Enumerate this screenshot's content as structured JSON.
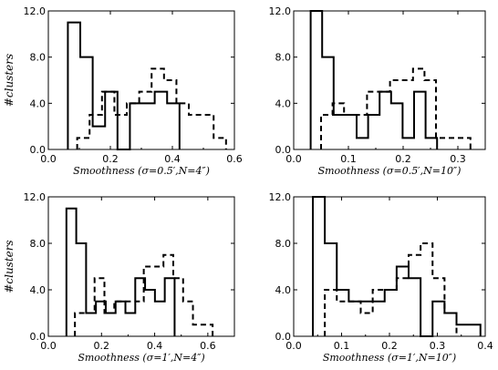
{
  "chart_data": [
    {
      "type": "histogram",
      "xlabel": "Smoothness (σ=0.5′,N=4″)",
      "ylabel": "#clusters",
      "xlim": [
        0,
        0.6
      ],
      "ylim": [
        0,
        12
      ],
      "xticks": [
        "0.0",
        "0.2",
        "0.4",
        "0.6"
      ],
      "yticks": [
        "0.0",
        "4.0",
        "8.0",
        "12.0"
      ],
      "series": [
        {
          "style": "solid",
          "edges": [
            0.063,
            0.103,
            0.143,
            0.183,
            0.223,
            0.263,
            0.303,
            0.343,
            0.383,
            0.423
          ],
          "counts": [
            11,
            8,
            2,
            5,
            0,
            4,
            4,
            5,
            4
          ]
        },
        {
          "style": "dashed",
          "edges": [
            0.093,
            0.133,
            0.173,
            0.213,
            0.253,
            0.293,
            0.333,
            0.373,
            0.413,
            0.453,
            0.493,
            0.533,
            0.573
          ],
          "counts": [
            1,
            3,
            5,
            3,
            4,
            5,
            7,
            6,
            4,
            3,
            3,
            1
          ]
        }
      ]
    },
    {
      "type": "histogram",
      "xlabel": "Smoothness (σ=0.5′,N=10″)",
      "ylabel": "",
      "xlim": [
        0,
        0.35
      ],
      "ylim": [
        0,
        12
      ],
      "xticks": [
        "0.0",
        "0.1",
        "0.2",
        "0.3"
      ],
      "yticks": [
        "0.0",
        "4.0",
        "8.0",
        "12.0"
      ],
      "series": [
        {
          "style": "solid",
          "edges": [
            0.031,
            0.052,
            0.073,
            0.094,
            0.115,
            0.136,
            0.157,
            0.178,
            0.199,
            0.22,
            0.241,
            0.262
          ],
          "counts": [
            12,
            8,
            3,
            3,
            1,
            3,
            5,
            4,
            1,
            5,
            1
          ]
        },
        {
          "style": "dashed",
          "edges": [
            0.05,
            0.071,
            0.092,
            0.113,
            0.134,
            0.155,
            0.176,
            0.197,
            0.218,
            0.239,
            0.26,
            0.281,
            0.302,
            0.323
          ],
          "counts": [
            3,
            4,
            3,
            3,
            5,
            5,
            6,
            6,
            7,
            6,
            1,
            1,
            1
          ]
        }
      ]
    },
    {
      "type": "histogram",
      "xlabel": "Smoothness (σ=1′,N=4″)",
      "ylabel": "#clusters",
      "xlim": [
        0,
        0.7
      ],
      "ylim": [
        0,
        12
      ],
      "xticks": [
        "0.0",
        "0.2",
        "0.4",
        "0.6"
      ],
      "yticks": [
        "0.0",
        "4.0",
        "8.0",
        "12.0"
      ],
      "series": [
        {
          "style": "solid",
          "edges": [
            0.068,
            0.105,
            0.142,
            0.179,
            0.216,
            0.253,
            0.29,
            0.327,
            0.364,
            0.401,
            0.438,
            0.475
          ],
          "counts": [
            11,
            8,
            2,
            3,
            2,
            3,
            2,
            5,
            4,
            3,
            5
          ]
        },
        {
          "style": "dashed",
          "edges": [
            0.1,
            0.137,
            0.174,
            0.211,
            0.248,
            0.285,
            0.322,
            0.359,
            0.396,
            0.433,
            0.47,
            0.507,
            0.544,
            0.581,
            0.618
          ],
          "counts": [
            2,
            2,
            5,
            2,
            3,
            3,
            3,
            6,
            6,
            7,
            5,
            3,
            1,
            1
          ]
        }
      ]
    },
    {
      "type": "histogram",
      "xlabel": "Smoothness (σ=1′,N=10″)",
      "ylabel": "",
      "xlim": [
        0,
        0.4
      ],
      "ylim": [
        0,
        12
      ],
      "xticks": [
        "0.0",
        "0.1",
        "0.2",
        "0.3",
        "0.4"
      ],
      "yticks": [
        "0.0",
        "4.0",
        "8.0",
        "12.0"
      ],
      "series": [
        {
          "style": "solid",
          "edges": [
            0.04,
            0.065,
            0.09,
            0.115,
            0.14,
            0.165,
            0.19,
            0.215,
            0.24,
            0.265,
            0.29,
            0.315,
            0.34,
            0.365,
            0.39
          ],
          "counts": [
            12,
            8,
            4,
            3,
            3,
            3,
            4,
            6,
            5,
            0,
            3,
            2,
            1,
            1
          ]
        },
        {
          "style": "dashed",
          "edges": [
            0.065,
            0.09,
            0.115,
            0.14,
            0.165,
            0.19,
            0.215,
            0.24,
            0.265,
            0.29,
            0.315,
            0.34
          ],
          "counts": [
            4,
            3,
            3,
            2,
            4,
            4,
            5,
            7,
            8,
            5,
            2
          ]
        }
      ]
    }
  ]
}
